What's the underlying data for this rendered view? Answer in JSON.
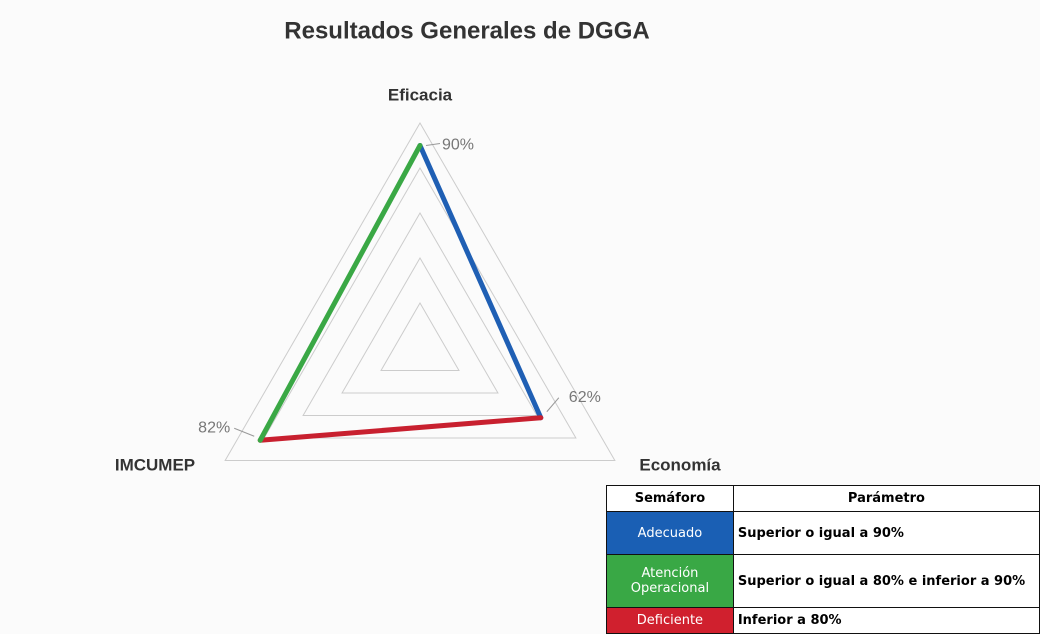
{
  "chart_data": {
    "type": "radar",
    "title": "Resultados Generales de DGGA",
    "categories": [
      "Eficacia",
      "Economía",
      "IMCUMEP"
    ],
    "values": [
      90,
      62,
      82
    ],
    "value_labels": [
      "90%",
      "62%",
      "82%"
    ],
    "segment_colors": [
      "#1f5fb4",
      "#c8202f",
      "#3aa845"
    ],
    "rlim": [
      0,
      100
    ],
    "rticks": [
      20,
      40,
      60,
      80,
      100
    ],
    "grid": true
  },
  "table": {
    "header": [
      "Semáforo",
      "Parámetro"
    ],
    "rows": [
      {
        "label": "Adecuado",
        "color": "#1a5fb4",
        "text": "Superior o igual a 90%"
      },
      {
        "label": "Atención Operacional",
        "color": "#39a845",
        "text": "Superior o igual a 80% e inferior a 90%"
      },
      {
        "label": "Deficiente",
        "color": "#d0202e",
        "text": "Inferior a 80%"
      }
    ]
  }
}
